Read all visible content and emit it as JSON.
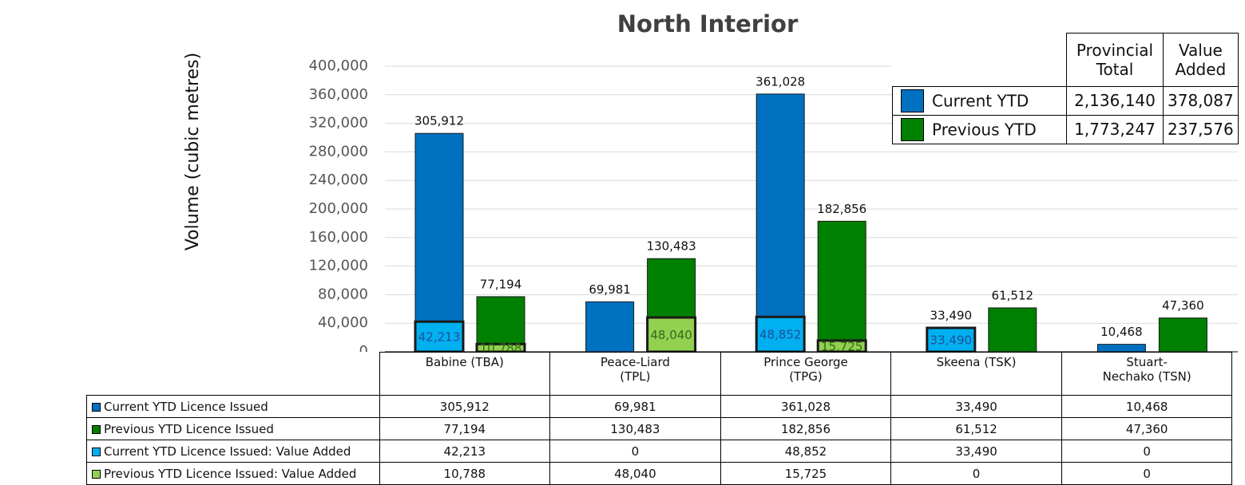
{
  "chart_data": {
    "type": "bar",
    "title": "North Interior",
    "y_axis_label": "Volume (cubic metres)",
    "categories": [
      "Babine (TBA)",
      "Peace-Liard (TPL)",
      "Prince George (TPG)",
      "Skeena (TSK)",
      "Stuart-Nechako (TSN)"
    ],
    "series": [
      {
        "name": "Current YTD Licence Issued",
        "color": "#0070c0",
        "values": [
          305912,
          69981,
          361028,
          33490,
          10468
        ],
        "value_labels": [
          "305,912",
          "69,981",
          "361,028",
          "33,490",
          "10,468"
        ]
      },
      {
        "name": "Previous YTD Licence Issued",
        "color": "#008000",
        "values": [
          77194,
          130483,
          182856,
          61512,
          47360
        ],
        "value_labels": [
          "77,194",
          "130,483",
          "182,856",
          "61,512",
          "47,360"
        ]
      },
      {
        "name": "Current YTD Licence Issued: Value Added",
        "color": "#00b0f0",
        "values": [
          42213,
          0,
          48852,
          33490,
          0
        ],
        "value_labels": [
          "42,213",
          "0",
          "48,852",
          "33,490",
          "0"
        ]
      },
      {
        "name": "Previous YTD Licence Issued: Value Added",
        "color": "#92d050",
        "values": [
          10788,
          48040,
          15725,
          0,
          0
        ],
        "value_labels": [
          "10,788",
          "48,040",
          "15,725",
          "0",
          "0"
        ]
      }
    ],
    "ylim": [
      0,
      400000
    ],
    "yticks": [
      0,
      {
        "value": 40000,
        "label": "40,000"
      },
      {
        "value": 80000,
        "label": "80,000"
      },
      {
        "value": 120000,
        "label": "120,000"
      },
      {
        "value": 160000,
        "label": "160,000"
      },
      {
        "value": 200000,
        "label": "200,000"
      },
      {
        "value": 240000,
        "label": "240,000"
      },
      {
        "value": 280000,
        "label": "280,000"
      },
      {
        "value": 320000,
        "label": "320,000"
      },
      {
        "value": 360000,
        "label": "360,000"
      },
      {
        "value": 400000,
        "label": "400,000"
      }
    ],
    "grid": true
  },
  "summary_table": {
    "columns": [
      "Provincial Total",
      "Value Added"
    ],
    "rows": [
      {
        "name": "Current YTD",
        "color": "#0070c0",
        "values": [
          "2,136,140",
          "378,087"
        ]
      },
      {
        "name": "Previous YTD",
        "color": "#008000",
        "values": [
          "1,773,247",
          "237,576"
        ]
      }
    ]
  }
}
